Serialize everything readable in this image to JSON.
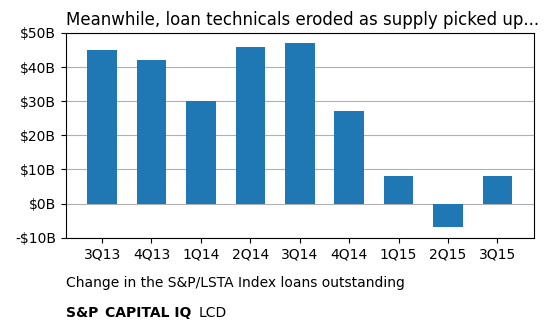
{
  "chart_data": {
    "type": "bar",
    "title": "Meanwhile, loan technicals eroded as supply picked up...",
    "categories": [
      "3Q13",
      "4Q13",
      "1Q14",
      "2Q14",
      "3Q14",
      "4Q14",
      "1Q15",
      "2Q15",
      "3Q15"
    ],
    "values": [
      45,
      42,
      30,
      46,
      47,
      27,
      8,
      -7,
      8
    ],
    "ylim": [
      -10,
      50
    ],
    "yticks": [
      {
        "value": -10,
        "label": "-$10B"
      },
      {
        "value": 0,
        "label": "$0B"
      },
      {
        "value": 10,
        "label": "$10B"
      },
      {
        "value": 20,
        "label": "$20B"
      },
      {
        "value": 30,
        "label": "$30B"
      },
      {
        "value": 40,
        "label": "$40B"
      },
      {
        "value": 50,
        "label": "$50B"
      }
    ],
    "grid": true,
    "annotations": [
      "Change in the S&P/LSTA Index loans outstanding",
      "S&P",
      "CAPITAL IQ",
      "LCD"
    ]
  }
}
